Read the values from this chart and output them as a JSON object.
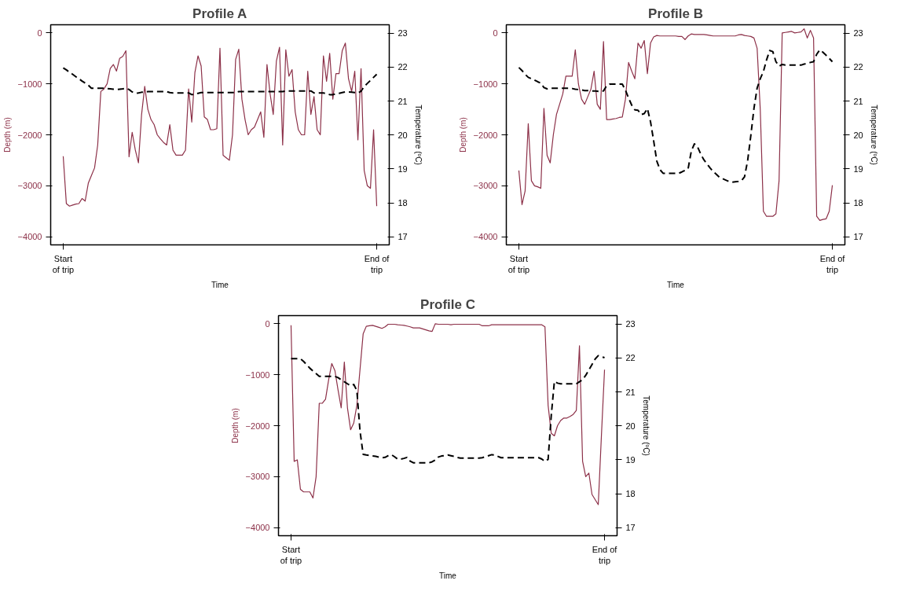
{
  "chart_data": [
    {
      "type": "line",
      "title": "Profile A",
      "xlabel": "Time",
      "ylabel": "Depth (m)",
      "y2label": "Temperature (ºC)",
      "categories": [
        "Start\nof trip",
        null,
        null,
        null,
        null,
        null,
        null,
        null,
        null,
        null,
        null,
        null,
        null,
        null,
        null,
        null,
        null,
        null,
        null,
        null,
        null,
        null,
        null,
        null,
        null,
        null,
        null,
        null,
        null,
        null,
        null,
        null,
        null,
        null,
        null,
        null,
        null,
        null,
        null,
        null,
        null,
        null,
        null,
        null,
        null,
        null,
        null,
        null,
        null,
        null,
        null,
        null,
        null,
        null,
        null,
        null,
        null,
        null,
        null,
        null,
        null,
        null,
        null,
        null,
        null,
        null,
        null,
        null,
        null,
        null,
        null,
        null,
        null,
        null,
        null,
        null,
        null,
        null,
        null,
        null,
        null,
        null,
        null,
        null,
        null,
        null,
        null,
        null,
        null,
        null,
        null,
        null,
        null,
        null,
        null,
        null,
        null,
        null,
        null,
        null,
        "End of\ntrip"
      ],
      "ylim": [
        -4160,
        160
      ],
      "yticks": [
        -4000,
        -3000,
        -2000,
        -1000,
        0
      ],
      "y2lim": [
        16.76,
        23.25
      ],
      "y2ticks": [
        17,
        18,
        19,
        20,
        21,
        22,
        23
      ],
      "grid": false,
      "series": [
        {
          "color": "#8c3048",
          "line_style": "solid",
          "values": [
            -2420,
            -3350,
            -3400,
            -3380,
            -3360,
            -3350,
            -3250,
            -3300,
            -2950,
            -2800,
            -2650,
            -2200,
            -1150,
            -1100,
            -1000,
            -700,
            -620,
            -750,
            -500,
            -460,
            -350,
            -2430,
            -1950,
            -2300,
            -2550,
            -1600,
            -1050,
            -1500,
            -1700,
            -1800,
            -2000,
            -2080,
            -2150,
            -2200,
            -1800,
            -2300,
            -2400,
            -2400,
            -2400,
            -2300,
            -1100,
            -1750,
            -780,
            -450,
            -650,
            -1650,
            -1700,
            -1900,
            -1900,
            -1880,
            -300,
            -2400,
            -2450,
            -2500,
            -2000,
            -520,
            -320,
            -1300,
            -1700,
            -2000,
            -1900,
            -1850,
            -1700,
            -1550,
            -2050,
            -620,
            -1200,
            -1600,
            -550,
            -280,
            -2200,
            -330,
            -850,
            -720,
            -1550,
            -1900,
            -2000,
            -2000,
            -750,
            -1600,
            -1250,
            -1900,
            -2000,
            -450,
            -950,
            -400,
            -1300,
            -800,
            -800,
            -350,
            -200,
            -900,
            -1150,
            -750,
            -2100,
            -700,
            -2700,
            -3000,
            -3050,
            -1900,
            -3400
          ]
        },
        {
          "color": "#000000",
          "line_style": "dashed",
          "axis": "y2",
          "values": [
            21.98,
            21.92,
            21.85,
            21.79,
            21.72,
            21.66,
            21.59,
            21.53,
            21.47,
            21.38,
            21.38,
            21.38,
            21.38,
            21.38,
            21.37,
            21.36,
            21.35,
            21.34,
            21.35,
            21.36,
            21.38,
            21.34,
            21.27,
            21.23,
            21.24,
            21.26,
            21.27,
            21.28,
            21.28,
            21.28,
            21.28,
            21.28,
            21.28,
            21.28,
            21.25,
            21.24,
            21.24,
            21.24,
            21.24,
            21.24,
            21.24,
            21.19,
            21.2,
            21.23,
            21.25,
            21.25,
            21.25,
            21.25,
            21.25,
            21.25,
            21.25,
            21.25,
            21.25,
            21.25,
            21.25,
            21.25,
            21.28,
            21.28,
            21.28,
            21.28,
            21.28,
            21.28,
            21.28,
            21.28,
            21.28,
            21.28,
            21.28,
            21.28,
            21.28,
            21.28,
            21.28,
            21.3,
            21.3,
            21.3,
            21.3,
            21.3,
            21.3,
            21.3,
            21.3,
            21.3,
            21.24,
            21.24,
            21.24,
            21.24,
            21.22,
            21.19,
            21.19,
            21.21,
            21.23,
            21.25,
            21.27,
            21.27,
            21.26,
            21.25,
            21.24,
            21.29,
            21.43,
            21.52,
            21.61,
            21.7,
            21.79
          ]
        }
      ]
    },
    {
      "type": "line",
      "title": "Profile B",
      "xlabel": "Time",
      "ylabel": "Depth (m)",
      "y2label": "Temperature (ºC)",
      "categories": [
        "Start\nof trip",
        null,
        null,
        null,
        null,
        null,
        null,
        null,
        null,
        null,
        null,
        null,
        null,
        null,
        null,
        null,
        null,
        null,
        null,
        null,
        null,
        null,
        null,
        null,
        null,
        null,
        null,
        null,
        null,
        null,
        null,
        null,
        null,
        null,
        null,
        null,
        null,
        null,
        null,
        null,
        null,
        null,
        null,
        null,
        null,
        null,
        null,
        null,
        null,
        null,
        null,
        null,
        null,
        null,
        null,
        null,
        null,
        null,
        null,
        null,
        null,
        null,
        null,
        null,
        null,
        null,
        null,
        null,
        null,
        null,
        null,
        null,
        null,
        null,
        null,
        null,
        null,
        null,
        null,
        null,
        null,
        null,
        null,
        null,
        null,
        null,
        null,
        null,
        null,
        null,
        null,
        null,
        null,
        null,
        null,
        null,
        null,
        null,
        null,
        null,
        "End of\ntrip"
      ],
      "ylim": [
        -4160,
        160
      ],
      "yticks": [
        -4000,
        -3000,
        -2000,
        -1000,
        0
      ],
      "y2lim": [
        16.76,
        23.25
      ],
      "y2ticks": [
        17,
        18,
        19,
        20,
        21,
        22,
        23
      ],
      "grid": false,
      "series": [
        {
          "color": "#8c3048",
          "line_style": "solid",
          "values": [
            -2700,
            -3370,
            -3100,
            -1780,
            -2900,
            -3000,
            -3020,
            -3050,
            -1480,
            -2400,
            -2550,
            -2000,
            -1600,
            -1400,
            -1200,
            -850,
            -850,
            -850,
            -330,
            -1000,
            -1300,
            -1400,
            -1250,
            -1100,
            -750,
            -1400,
            -1500,
            -170,
            -1700,
            -1700,
            -1690,
            -1680,
            -1660,
            -1650,
            -1300,
            -580,
            -750,
            -900,
            -200,
            -300,
            -150,
            -800,
            -200,
            -80,
            -50,
            -60,
            -60,
            -60,
            -60,
            -60,
            -60,
            -70,
            -70,
            -130,
            -60,
            -20,
            -30,
            -30,
            -30,
            -30,
            -40,
            -50,
            -60,
            -60,
            -60,
            -60,
            -60,
            -60,
            -60,
            -60,
            -40,
            -30,
            -50,
            -60,
            -70,
            -100,
            -300,
            -1500,
            -3500,
            -3600,
            -3600,
            -3600,
            -3550,
            -2900,
            0,
            10,
            20,
            30,
            0,
            10,
            20,
            80,
            -100,
            50,
            -100,
            -3600,
            -3680,
            -3660,
            -3650,
            -3500,
            -2990
          ]
        },
        {
          "color": "#000000",
          "line_style": "dashed",
          "axis": "y2",
          "values": [
            21.99,
            21.9,
            21.79,
            21.7,
            21.66,
            21.62,
            21.57,
            21.53,
            21.4,
            21.36,
            21.38,
            21.38,
            21.38,
            21.38,
            21.38,
            21.38,
            21.38,
            21.37,
            21.35,
            21.34,
            21.33,
            21.31,
            21.31,
            21.3,
            21.3,
            21.29,
            21.28,
            21.3,
            21.45,
            21.5,
            21.5,
            21.5,
            21.5,
            21.5,
            21.32,
            21.09,
            20.88,
            20.74,
            20.73,
            20.6,
            20.63,
            20.78,
            20.39,
            19.83,
            19.23,
            18.98,
            18.87,
            18.87,
            18.87,
            18.87,
            18.87,
            18.87,
            18.91,
            18.96,
            19.01,
            19.52,
            19.74,
            19.65,
            19.44,
            19.27,
            19.15,
            19.03,
            18.92,
            18.84,
            18.75,
            18.71,
            18.67,
            18.63,
            18.61,
            18.62,
            18.63,
            18.65,
            18.77,
            19.26,
            19.99,
            20.79,
            21.38,
            21.66,
            21.87,
            22.21,
            22.49,
            22.46,
            22.16,
            22.03,
            22.08,
            22.06,
            22.06,
            22.06,
            22.06,
            22.06,
            22.06,
            22.09,
            22.11,
            22.14,
            22.16,
            22.38,
            22.51,
            22.44,
            22.35,
            22.26,
            22.16
          ]
        }
      ]
    },
    {
      "type": "line",
      "title": "Profile C",
      "xlabel": "Time",
      "ylabel": "Depth (m)",
      "y2label": "Temperature (ºC)",
      "categories": [
        "Start\nof trip",
        null,
        null,
        null,
        null,
        null,
        null,
        null,
        null,
        null,
        null,
        null,
        null,
        null,
        null,
        null,
        null,
        null,
        null,
        null,
        null,
        null,
        null,
        null,
        null,
        null,
        null,
        null,
        null,
        null,
        null,
        null,
        null,
        null,
        null,
        null,
        null,
        null,
        null,
        null,
        null,
        null,
        null,
        null,
        null,
        null,
        null,
        null,
        null,
        null,
        null,
        null,
        null,
        null,
        null,
        null,
        null,
        null,
        null,
        null,
        null,
        null,
        null,
        null,
        null,
        null,
        null,
        null,
        null,
        null,
        null,
        null,
        null,
        null,
        null,
        null,
        null,
        null,
        null,
        null,
        null,
        null,
        null,
        null,
        null,
        null,
        null,
        null,
        null,
        null,
        null,
        null,
        null,
        null,
        null,
        null,
        null,
        null,
        null,
        null,
        "End of\ntrip"
      ],
      "ylim": [
        -4160,
        160
      ],
      "yticks": [
        -4000,
        -3000,
        -2000,
        -1000,
        0
      ],
      "y2lim": [
        16.76,
        23.25
      ],
      "y2ticks": [
        17,
        18,
        19,
        20,
        21,
        22,
        23
      ],
      "grid": false,
      "series": [
        {
          "color": "#8c3048",
          "line_style": "solid",
          "values": [
            -30,
            -2700,
            -2670,
            -3250,
            -3300,
            -3300,
            -3300,
            -3420,
            -3000,
            -1560,
            -1560,
            -1480,
            -1100,
            -780,
            -920,
            -1300,
            -1650,
            -750,
            -1650,
            -2080,
            -1950,
            -1600,
            -900,
            -200,
            -50,
            -40,
            -30,
            -50,
            -70,
            -90,
            -60,
            -10,
            -10,
            -10,
            -20,
            -25,
            -30,
            -45,
            -60,
            -80,
            -80,
            -80,
            -100,
            -120,
            -140,
            -150,
            0,
            -10,
            -10,
            -10,
            -10,
            -20,
            -10,
            -10,
            -10,
            -10,
            -10,
            -10,
            -10,
            -10,
            -10,
            -40,
            -40,
            -40,
            -20,
            -20,
            -20,
            -20,
            -20,
            -20,
            -20,
            -20,
            -20,
            -20,
            -20,
            -20,
            -20,
            -20,
            -20,
            -20,
            -20,
            -60,
            -1600,
            -2150,
            -2200,
            -2000,
            -1900,
            -1850,
            -1850,
            -1820,
            -1780,
            -1700,
            -430,
            -2700,
            -3000,
            -2930,
            -3350,
            -3450,
            -3550,
            -2200,
            -900
          ]
        },
        {
          "color": "#000000",
          "line_style": "dashed",
          "axis": "y2",
          "values": [
            21.98,
            21.98,
            21.98,
            21.98,
            21.9,
            21.8,
            21.7,
            21.62,
            21.54,
            21.46,
            21.46,
            21.46,
            21.46,
            21.46,
            21.46,
            21.42,
            21.36,
            21.3,
            21.24,
            21.18,
            21.22,
            21.04,
            19.85,
            19.16,
            19.14,
            19.13,
            19.11,
            19.1,
            19.08,
            19.06,
            19.07,
            19.12,
            19.15,
            19.09,
            19.02,
            19.02,
            19.04,
            19.07,
            18.96,
            18.91,
            18.91,
            18.91,
            18.91,
            18.91,
            18.91,
            18.94,
            18.99,
            19.08,
            19.11,
            19.12,
            19.14,
            19.12,
            19.1,
            19.07,
            19.05,
            19.05,
            19.05,
            19.05,
            19.05,
            19.05,
            19.05,
            19.06,
            19.09,
            19.12,
            19.15,
            19.14,
            19.1,
            19.06,
            19.06,
            19.06,
            19.06,
            19.06,
            19.06,
            19.06,
            19.06,
            19.06,
            19.06,
            19.06,
            19.06,
            19.06,
            19.02,
            18.95,
            19.01,
            20.3,
            21.31,
            21.26,
            21.24,
            21.24,
            21.24,
            21.24,
            21.24,
            21.24,
            21.3,
            21.36,
            21.49,
            21.65,
            21.81,
            21.97,
            22.07,
            22.04,
            22.01
          ]
        }
      ]
    }
  ]
}
